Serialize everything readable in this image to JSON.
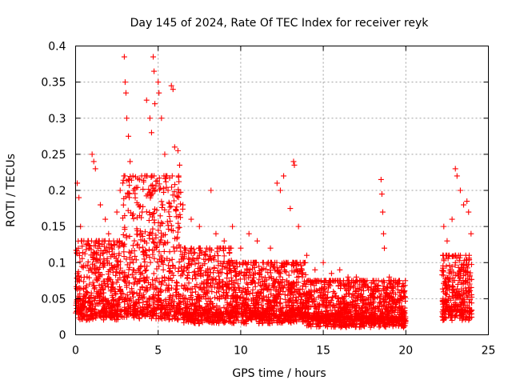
{
  "chart_data": {
    "type": "scatter",
    "title": "Day 145 of 2024, Rate Of TEC Index for receiver reyk",
    "xlabel": "GPS time / hours",
    "ylabel": "ROTI / TECUs",
    "xlim": [
      0,
      25
    ],
    "ylim": [
      0,
      0.4
    ],
    "x_ticks": [
      0,
      5,
      10,
      15,
      20,
      25
    ],
    "x_tick_labels": [
      "0",
      "5",
      "10",
      "15",
      "20",
      "25"
    ],
    "y_ticks": [
      0,
      0.05,
      0.1,
      0.15,
      0.2,
      0.25,
      0.3,
      0.35,
      0.4
    ],
    "y_tick_labels": [
      "0",
      "0.05",
      "0.1",
      "0.15",
      "0.2",
      "0.25",
      "0.3",
      "0.35",
      "0.4"
    ],
    "grid": true,
    "marker": "+",
    "color": "#ff0000",
    "data_gap_hours": [
      20.0,
      22.2
    ],
    "series": [
      {
        "name": "ROTI",
        "points": [
          [
            0.1,
            0.21
          ],
          [
            0.2,
            0.19
          ],
          [
            0.3,
            0.15
          ],
          [
            0.5,
            0.13
          ],
          [
            0.8,
            0.12
          ],
          [
            1.0,
            0.25
          ],
          [
            1.1,
            0.24
          ],
          [
            1.2,
            0.23
          ],
          [
            1.5,
            0.18
          ],
          [
            1.8,
            0.16
          ],
          [
            2.0,
            0.14
          ],
          [
            2.2,
            0.12
          ],
          [
            2.5,
            0.17
          ],
          [
            2.7,
            0.2
          ],
          [
            2.95,
            0.385
          ],
          [
            3.0,
            0.35
          ],
          [
            3.05,
            0.335
          ],
          [
            3.1,
            0.3
          ],
          [
            3.2,
            0.275
          ],
          [
            3.3,
            0.24
          ],
          [
            3.5,
            0.2
          ],
          [
            3.8,
            0.18
          ],
          [
            4.0,
            0.22
          ],
          [
            4.3,
            0.325
          ],
          [
            4.5,
            0.3
          ],
          [
            4.6,
            0.28
          ],
          [
            4.7,
            0.385
          ],
          [
            4.75,
            0.365
          ],
          [
            4.8,
            0.32
          ],
          [
            5.0,
            0.35
          ],
          [
            5.05,
            0.335
          ],
          [
            5.2,
            0.3
          ],
          [
            5.4,
            0.25
          ],
          [
            5.6,
            0.2
          ],
          [
            5.8,
            0.345
          ],
          [
            5.9,
            0.34
          ],
          [
            6.0,
            0.26
          ],
          [
            6.2,
            0.255
          ],
          [
            6.3,
            0.235
          ],
          [
            6.5,
            0.18
          ],
          [
            7.0,
            0.16
          ],
          [
            7.5,
            0.15
          ],
          [
            8.2,
            0.2
          ],
          [
            8.5,
            0.14
          ],
          [
            9.0,
            0.13
          ],
          [
            9.5,
            0.15
          ],
          [
            10.0,
            0.12
          ],
          [
            10.5,
            0.14
          ],
          [
            11.0,
            0.13
          ],
          [
            11.8,
            0.12
          ],
          [
            12.2,
            0.21
          ],
          [
            12.4,
            0.2
          ],
          [
            12.6,
            0.22
          ],
          [
            13.0,
            0.175
          ],
          [
            13.2,
            0.24
          ],
          [
            13.25,
            0.235
          ],
          [
            13.5,
            0.15
          ],
          [
            14.0,
            0.11
          ],
          [
            14.5,
            0.09
          ],
          [
            15.0,
            0.1
          ],
          [
            15.5,
            0.085
          ],
          [
            16.0,
            0.09
          ],
          [
            16.5,
            0.08
          ],
          [
            17.0,
            0.08
          ],
          [
            17.5,
            0.07
          ],
          [
            18.0,
            0.075
          ],
          [
            18.5,
            0.215
          ],
          [
            18.55,
            0.195
          ],
          [
            18.6,
            0.17
          ],
          [
            18.65,
            0.14
          ],
          [
            18.7,
            0.12
          ],
          [
            19.0,
            0.08
          ],
          [
            19.5,
            0.07
          ],
          [
            19.9,
            0.06
          ],
          [
            22.3,
            0.15
          ],
          [
            22.5,
            0.13
          ],
          [
            22.8,
            0.16
          ],
          [
            23.0,
            0.23
          ],
          [
            23.1,
            0.22
          ],
          [
            23.3,
            0.2
          ],
          [
            23.5,
            0.18
          ],
          [
            23.7,
            0.185
          ],
          [
            23.8,
            0.17
          ],
          [
            23.95,
            0.14
          ]
        ],
        "band": [
          {
            "x_from": 0.0,
            "x_to": 2.8,
            "y_low": 0.02,
            "y_high": 0.13
          },
          {
            "x_from": 2.8,
            "x_to": 6.5,
            "y_low": 0.02,
            "y_high": 0.22
          },
          {
            "x_from": 6.5,
            "x_to": 9.5,
            "y_low": 0.015,
            "y_high": 0.12
          },
          {
            "x_from": 9.5,
            "x_to": 14.0,
            "y_low": 0.015,
            "y_high": 0.1
          },
          {
            "x_from": 14.0,
            "x_to": 20.0,
            "y_low": 0.01,
            "y_high": 0.075
          },
          {
            "x_from": 22.2,
            "x_to": 24.0,
            "y_low": 0.02,
            "y_high": 0.11
          }
        ]
      }
    ]
  }
}
